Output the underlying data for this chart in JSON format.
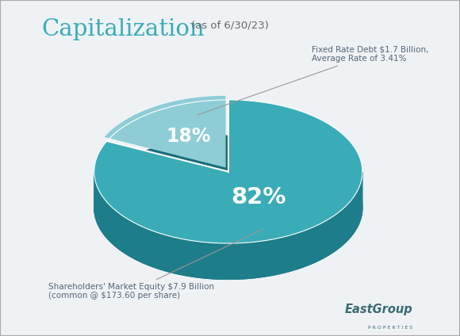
{
  "title": "Capitalization",
  "subtitle": "(as of 6/30/23)",
  "slices": [
    18,
    82
  ],
  "labels": [
    "18%",
    "82%"
  ],
  "color_debt_top": "#8ecdd6",
  "color_equity_top": "#3aacb8",
  "color_side_dark": "#1a6e7a",
  "color_side_mid": "#1d7d8a",
  "annotation_debt": "Fixed Rate Debt $1.7 Billion,\nAverage Rate of 3.41%",
  "annotation_equity": "Shareholders' Market Equity $7.9 Billion\n(common @ $173.60 per share)",
  "background_color": "#eef2f5",
  "border_color": "#aaaaaa",
  "text_color_ann": "#556677",
  "title_color": "#3aacb8",
  "logo_main": "EastGroup",
  "logo_sub": "P R O P E R T I E S"
}
